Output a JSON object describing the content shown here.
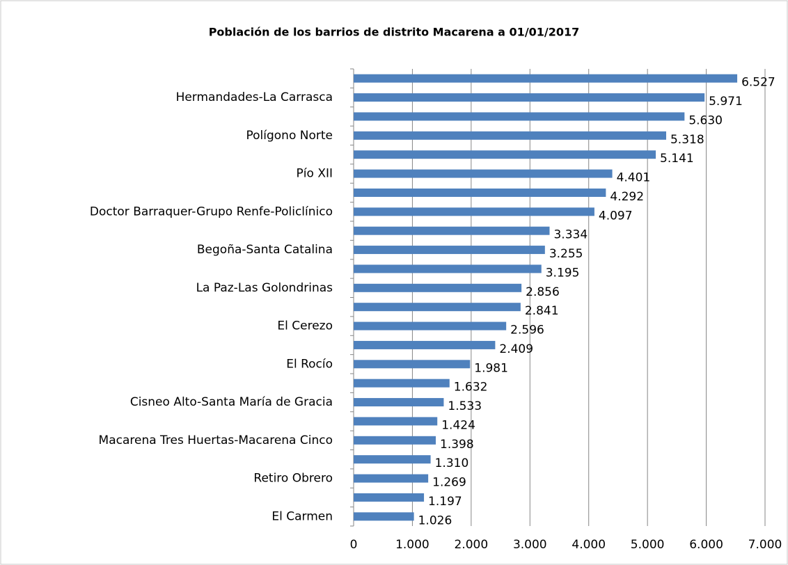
{
  "chart_data": {
    "type": "bar",
    "orientation": "horizontal",
    "title": "Población de los barrios de distrito Macarena a 01/01/2017",
    "categories": [
      null,
      "Hermandades-La Carrasca",
      null,
      "Polígono Norte",
      null,
      "Pío XII",
      null,
      "Doctor Barraquer-Grupo Renfe-Policlínico",
      null,
      "Begoña-Santa Catalina",
      null,
      "La Paz-Las Golondrinas",
      null,
      "El Cerezo",
      null,
      "El Rocío",
      null,
      "Cisneo Alto-Santa María de Gracia",
      null,
      "Macarena Tres Huertas-Macarena Cinco",
      null,
      "Retiro Obrero",
      null,
      "El Carmen"
    ],
    "values": [
      6527,
      5971,
      5630,
      5318,
      5141,
      4401,
      4292,
      4097,
      3334,
      3255,
      3195,
      2856,
      2841,
      2596,
      2409,
      1981,
      1632,
      1533,
      1424,
      1398,
      1310,
      1269,
      1197,
      1026
    ],
    "value_labels": [
      "6.527",
      "5.971",
      "5.630",
      "5.318",
      "5.141",
      "4.401",
      "4.292",
      "4.097",
      "3.334",
      "3.255",
      "3.195",
      "2.856",
      "2.841",
      "2.596",
      "2.409",
      "1.981",
      "1.632",
      "1.533",
      "1.424",
      "1.398",
      "1.310",
      "1.269",
      "1.197",
      "1.026"
    ],
    "color": "#4f81bd",
    "xlim": [
      0,
      7000
    ],
    "xticks": [
      0,
      {
        "value": 1000,
        "label": "1.000"
      },
      {
        "value": 2000,
        "label": "2.000"
      },
      {
        "value": 3000,
        "label": "3.000"
      },
      {
        "value": 4000,
        "label": "4.000"
      },
      {
        "value": 5000,
        "label": "5.000"
      },
      {
        "value": 6000,
        "label": "6.000"
      },
      {
        "value": 7000,
        "label": "7.000"
      }
    ],
    "grid": true
  }
}
